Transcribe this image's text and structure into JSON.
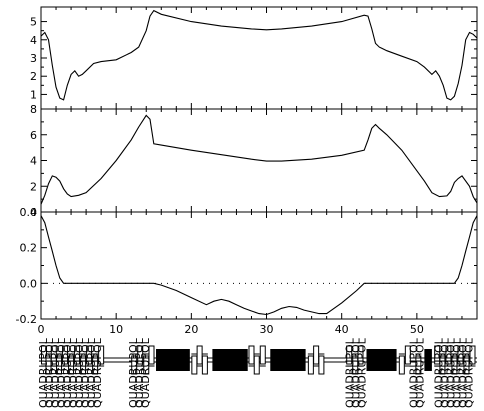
{
  "chart_data": [
    {
      "type": "line",
      "title": "",
      "xlabel": "",
      "ylabel": "",
      "xlim": [
        0,
        58
      ],
      "ylim": [
        0.2,
        5.8
      ],
      "y_ticks": [
        "1",
        "2",
        "3",
        "4",
        "5"
      ],
      "grid": false,
      "series": [
        {
          "x": [
            0,
            0.5,
            1,
            1.5,
            2,
            2.5,
            3,
            3.5,
            4,
            4.5,
            5,
            5.5,
            6,
            7,
            8,
            10,
            12,
            13,
            14,
            14.5,
            15,
            16,
            20,
            24,
            28,
            30,
            32,
            36,
            40,
            43,
            43.5,
            44,
            44.5,
            45,
            46,
            48,
            50,
            51,
            52,
            52.5,
            53,
            53.5,
            54,
            54.5,
            55,
            55.5,
            56,
            56.5,
            57,
            57.5,
            58
          ],
          "y": [
            4.2,
            4.4,
            4.0,
            2.6,
            1.4,
            0.8,
            0.7,
            1.5,
            2.1,
            2.3,
            2.0,
            2.1,
            2.3,
            2.7,
            2.8,
            2.9,
            3.3,
            3.6,
            4.5,
            5.3,
            5.6,
            5.4,
            5.0,
            4.75,
            4.6,
            4.55,
            4.6,
            4.75,
            5.0,
            5.35,
            5.3,
            4.6,
            3.8,
            3.6,
            3.4,
            3.1,
            2.8,
            2.5,
            2.1,
            2.3,
            2.0,
            1.5,
            0.8,
            0.7,
            0.9,
            1.6,
            2.6,
            4.0,
            4.4,
            4.3,
            4.1
          ]
        }
      ]
    },
    {
      "type": "line",
      "title": "",
      "xlabel": "",
      "ylabel": "",
      "xlim": [
        0,
        58
      ],
      "ylim": [
        0,
        8
      ],
      "y_ticks": [
        "0",
        "2",
        "4",
        "6",
        "8"
      ],
      "grid": false,
      "series": [
        {
          "x": [
            0,
            0.5,
            1,
            1.5,
            2,
            2.5,
            3,
            3.5,
            4,
            5,
            6,
            8,
            10,
            12,
            13,
            14,
            14.5,
            15,
            16,
            20,
            24,
            28,
            30,
            32,
            36,
            40,
            43,
            43.5,
            44,
            44.5,
            45,
            46,
            48,
            50,
            51,
            52,
            53,
            54,
            54.5,
            55,
            55.5,
            56,
            57,
            57.5,
            58
          ],
          "y": [
            0.6,
            1.3,
            2.2,
            2.8,
            2.7,
            2.4,
            1.8,
            1.4,
            1.2,
            1.3,
            1.5,
            2.6,
            4.0,
            5.6,
            6.6,
            7.5,
            7.2,
            5.3,
            5.2,
            4.8,
            4.45,
            4.1,
            3.95,
            3.95,
            4.1,
            4.4,
            4.8,
            5.6,
            6.5,
            6.8,
            6.5,
            6.0,
            4.8,
            3.2,
            2.4,
            1.5,
            1.2,
            1.25,
            1.6,
            2.3,
            2.6,
            2.8,
            2.0,
            1.2,
            0.7
          ]
        }
      ]
    },
    {
      "type": "line",
      "title": "",
      "xlabel": "",
      "ylabel": "",
      "xlim": [
        0,
        58
      ],
      "ylim": [
        -0.2,
        0.4
      ],
      "y_ticks": [
        "-0.2",
        "0.0",
        "0.2",
        "0.4"
      ],
      "x_ticks": [
        "0",
        "10",
        "20",
        "30",
        "40",
        "50"
      ],
      "reference_line": 0,
      "grid": false,
      "series": [
        {
          "x": [
            0,
            0.5,
            1,
            1.5,
            2,
            2.5,
            3,
            5,
            10,
            14,
            15,
            16,
            18,
            20,
            22,
            23,
            24,
            25,
            26,
            27,
            28,
            29,
            30,
            31,
            32,
            33,
            34,
            35,
            36,
            37,
            38,
            40,
            42,
            43,
            45,
            50,
            54,
            55,
            55.5,
            56,
            56.5,
            57,
            57.5,
            58
          ],
          "y": [
            0.38,
            0.34,
            0.26,
            0.18,
            0.1,
            0.03,
            0,
            0,
            0,
            0,
            0,
            -0.01,
            -0.04,
            -0.08,
            -0.12,
            -0.1,
            -0.09,
            -0.1,
            -0.12,
            -0.14,
            -0.155,
            -0.17,
            -0.175,
            -0.16,
            -0.14,
            -0.13,
            -0.135,
            -0.15,
            -0.16,
            -0.17,
            -0.17,
            -0.11,
            -0.04,
            0,
            0,
            0,
            0,
            0,
            0.03,
            0.1,
            0.18,
            0.26,
            0.34,
            0.38
          ]
        }
      ]
    }
  ],
  "lattice": {
    "dipoles": [
      {
        "s_start": 15.3,
        "s_end": 19.8
      },
      {
        "s_start": 22.8,
        "s_end": 27.5
      },
      {
        "s_start": 30.5,
        "s_end": 35.2
      },
      {
        "s_start": 43.3,
        "s_end": 47.3
      },
      {
        "s_start": 51.0,
        "s_end": 52.0
      }
    ],
    "quads": [
      0.4,
      1.0,
      1.7,
      2.4,
      3.2,
      4.0,
      4.8,
      5.6,
      6.4,
      7.2,
      8.0,
      12.4,
      13.2,
      14.0,
      14.7,
      20.4,
      21.1,
      21.8,
      28.0,
      28.7,
      29.5,
      35.9,
      36.6,
      37.3,
      41.0,
      41.8,
      42.5,
      48.0,
      48.8,
      50.2,
      52.7,
      53.4,
      54.2,
      55.0,
      55.8,
      56.6,
      57.4
    ],
    "labels": [
      {
        "s": 0.4,
        "text": "QUADRUPOL"
      },
      {
        "s": 1.2,
        "text": "QUADRUPOL"
      },
      {
        "s": 2.0,
        "text": "QUADRUPOL"
      },
      {
        "s": 2.8,
        "text": "QUADRUPOL"
      },
      {
        "s": 3.6,
        "text": "QUADRUPOL"
      },
      {
        "s": 4.4,
        "text": "QUADRUPOL"
      },
      {
        "s": 5.2,
        "text": "QUADRUPOL"
      },
      {
        "s": 6.0,
        "text": "QUADRUPOL"
      },
      {
        "s": 6.8,
        "text": "QUADRUPOL"
      },
      {
        "s": 7.6,
        "text": "QUADRUPOL"
      },
      {
        "s": 12.4,
        "text": "QUADRUPOL"
      },
      {
        "s": 13.2,
        "text": "QUADRUPOL"
      },
      {
        "s": 14.0,
        "text": "QUADRUPOL"
      },
      {
        "s": 41.2,
        "text": "QUADRUPOL"
      },
      {
        "s": 42.0,
        "text": "QUADRUPOL"
      },
      {
        "s": 42.8,
        "text": "QUADRUPOL"
      },
      {
        "s": 49.7,
        "text": "QUADRUPOL"
      },
      {
        "s": 50.5,
        "text": "QUADRUPOL"
      },
      {
        "s": 53.0,
        "text": "QUADRUPOL"
      },
      {
        "s": 53.8,
        "text": "QUADRUPOL"
      },
      {
        "s": 54.6,
        "text": "QUADRUPOL"
      },
      {
        "s": 55.4,
        "text": "QUADRUPOL"
      },
      {
        "s": 56.2,
        "text": "QUADRUPOL"
      },
      {
        "s": 57.0,
        "text": "QUADRUPOL"
      }
    ]
  }
}
